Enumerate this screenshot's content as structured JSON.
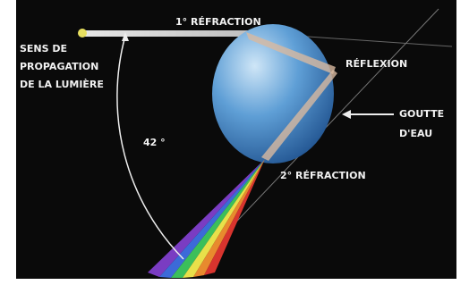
{
  "labels": {
    "first_refraction": "1° RÉFRACTION",
    "direction": [
      "SENS DE",
      "PROPAGATION",
      "DE LA LUMIÈRE"
    ],
    "reflection": "RÉFLEXION",
    "drop": [
      "GOUTTE",
      "D'EAU"
    ],
    "angle": "42 °",
    "second_refraction": "2° RÉFRACTION"
  }
}
